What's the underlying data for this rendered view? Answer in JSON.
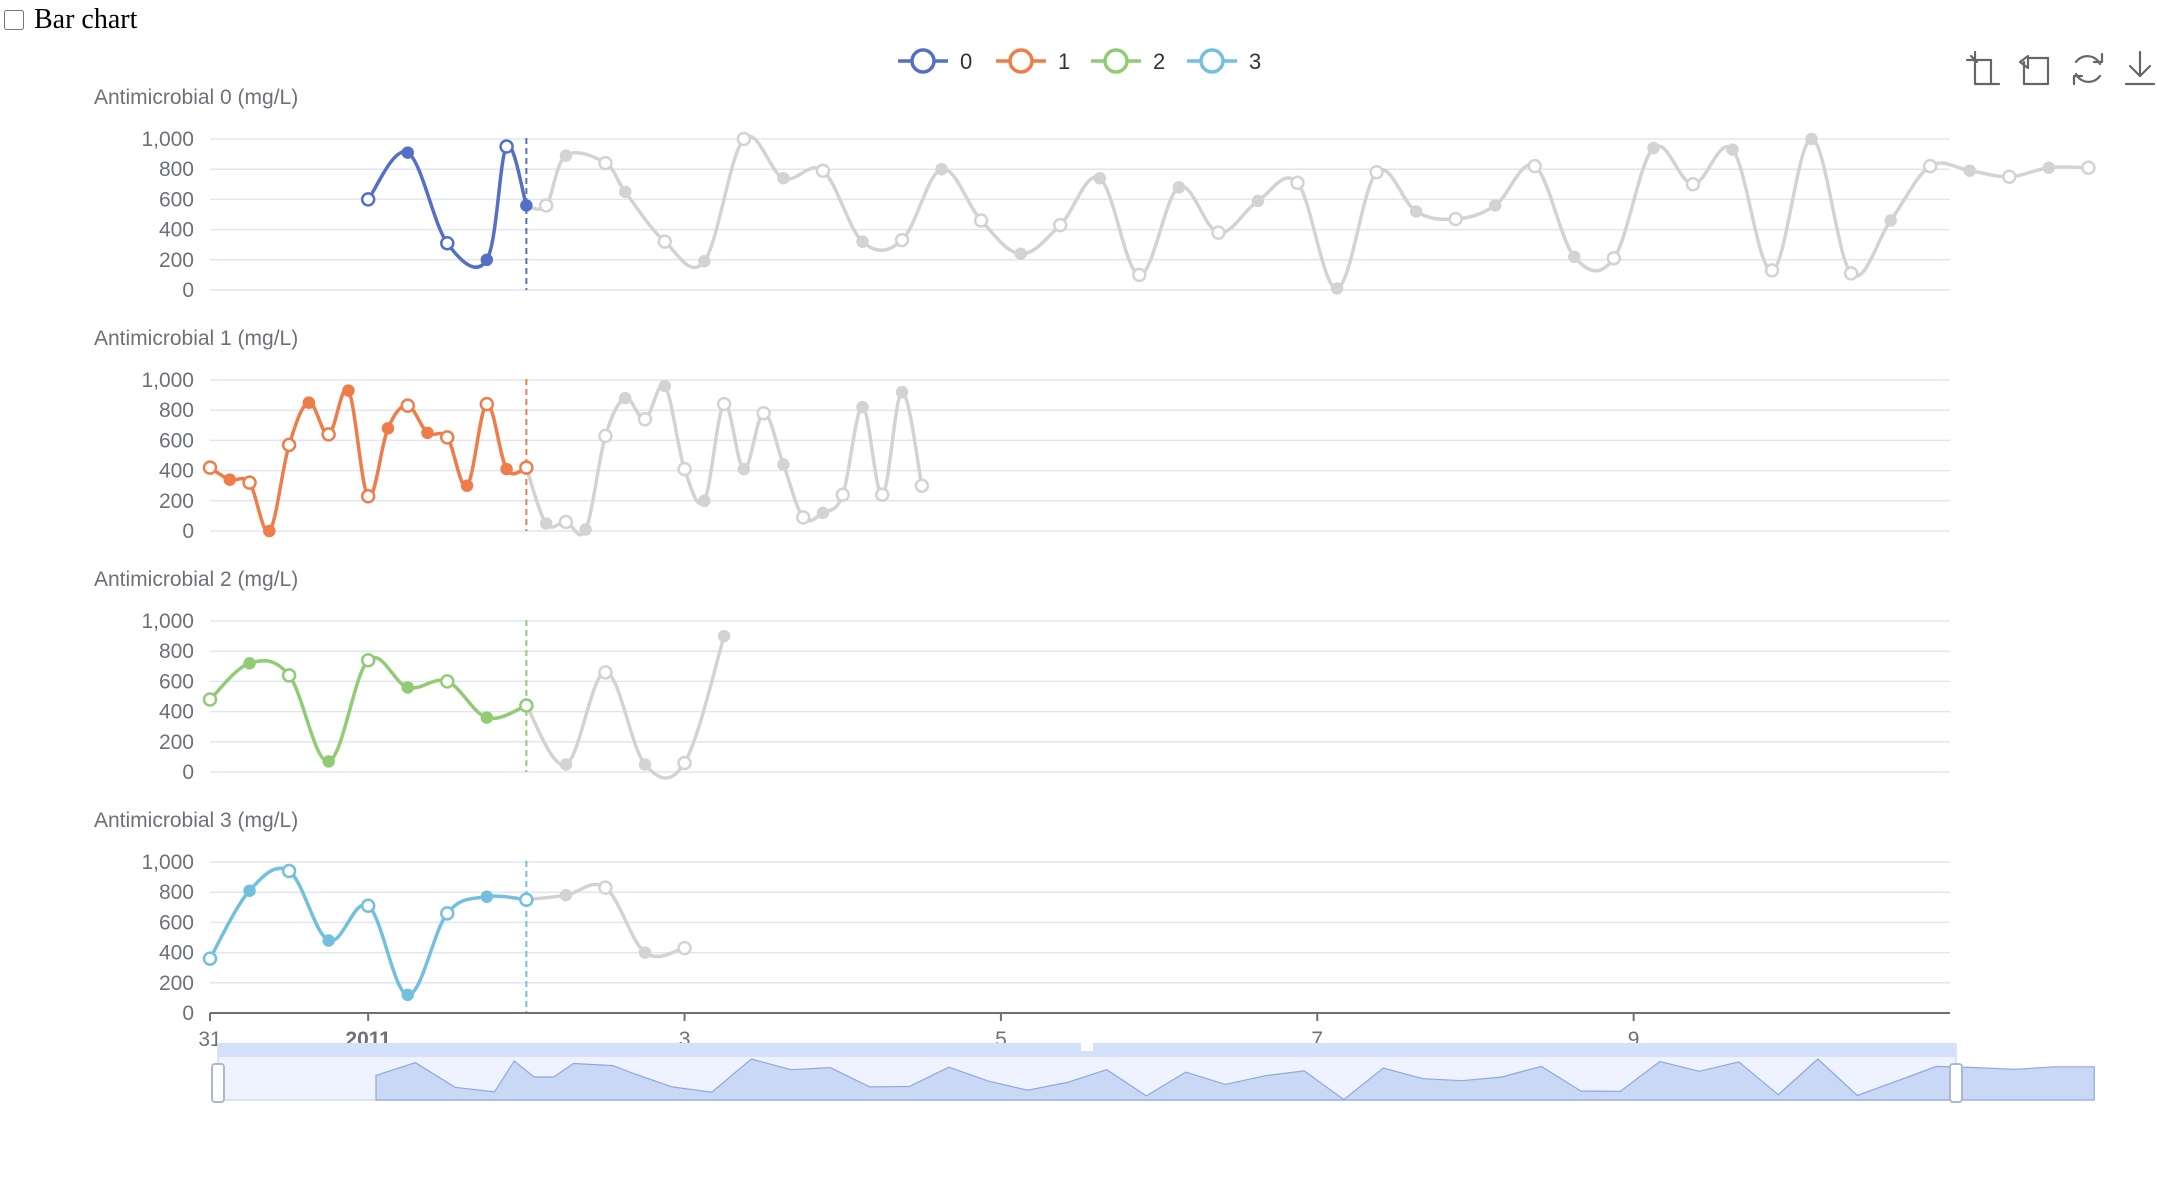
{
  "controls": {
    "bar_chart_label": "Bar chart",
    "bar_chart_checked": false
  },
  "toolbox": {
    "icons": [
      "zoom-select-icon",
      "zoom-reset-icon",
      "restore-icon",
      "download-icon"
    ]
  },
  "chart_data": {
    "type": "line",
    "title": "",
    "x_ticks": [
      "31",
      "2011",
      "3",
      "5",
      "7",
      "9"
    ],
    "legend": [
      "0",
      "1",
      "2",
      "3"
    ],
    "legend_placement": "top-center",
    "colors": [
      "#5470c6",
      "#ee7d4a",
      "#91cc75",
      "#73c0de"
    ],
    "future_color": "#d3d3d3",
    "ylim": [
      0,
      1000
    ],
    "y_ticks": [
      "0",
      "200",
      "400",
      "600",
      "800",
      "1,000"
    ],
    "grid": true,
    "current_marker_date": "2011-01-02",
    "x_range": [
      "2010-12-31",
      "2011-01-11"
    ],
    "series": [
      {
        "name": "0",
        "ylabel": "Antimicrobial 0 (mg/L)",
        "points": [
          [
            "2011-01-01T00:00",
            600
          ],
          [
            "2011-01-01T06:00",
            910
          ],
          [
            "2011-01-01T12:00",
            310
          ],
          [
            "2011-01-01T18:00",
            200
          ],
          [
            "2011-01-01T21:00",
            950
          ],
          [
            "2011-01-02T00:00",
            560
          ],
          [
            "2011-01-02T03:00",
            560
          ],
          [
            "2011-01-02T06:00",
            890
          ],
          [
            "2011-01-02T12:00",
            840
          ],
          [
            "2011-01-02T15:00",
            650
          ],
          [
            "2011-01-02T21:00",
            320
          ],
          [
            "2011-01-03T03:00",
            190
          ],
          [
            "2011-01-03T09:00",
            1000
          ],
          [
            "2011-01-03T15:00",
            740
          ],
          [
            "2011-01-03T21:00",
            790
          ],
          [
            "2011-01-04T03:00",
            320
          ],
          [
            "2011-01-04T09:00",
            330
          ],
          [
            "2011-01-04T15:00",
            800
          ],
          [
            "2011-01-04T21:00",
            460
          ],
          [
            "2011-01-05T03:00",
            240
          ],
          [
            "2011-01-05T09:00",
            430
          ],
          [
            "2011-01-05T15:00",
            740
          ],
          [
            "2011-01-05T21:00",
            100
          ],
          [
            "2011-01-06T03:00",
            680
          ],
          [
            "2011-01-06T09:00",
            380
          ],
          [
            "2011-01-06T15:00",
            590
          ],
          [
            "2011-01-06T21:00",
            710
          ],
          [
            "2011-01-07T03:00",
            10
          ],
          [
            "2011-01-07T09:00",
            780
          ],
          [
            "2011-01-07T15:00",
            520
          ],
          [
            "2011-01-07T21:00",
            470
          ],
          [
            "2011-01-08T03:00",
            560
          ],
          [
            "2011-01-08T09:00",
            820
          ],
          [
            "2011-01-08T15:00",
            220
          ],
          [
            "2011-01-08T21:00",
            210
          ],
          [
            "2011-01-09T03:00",
            940
          ],
          [
            "2011-01-09T09:00",
            700
          ],
          [
            "2011-01-09T15:00",
            930
          ],
          [
            "2011-01-09T21:00",
            130
          ],
          [
            "2011-01-10T03:00",
            1000
          ],
          [
            "2011-01-10T09:00",
            110
          ],
          [
            "2011-01-10T15:00",
            460
          ],
          [
            "2011-01-10T21:00",
            820
          ],
          [
            "2011-01-11T03:00",
            790
          ],
          [
            "2011-01-11T09:00",
            750
          ],
          [
            "2011-01-11T15:00",
            810
          ],
          [
            "2011-01-11T21:00",
            810
          ]
        ]
      },
      {
        "name": "1",
        "ylabel": "Antimicrobial 1 (mg/L)",
        "points": [
          [
            "2010-12-31T00:00",
            420
          ],
          [
            "2010-12-31T03:00",
            340
          ],
          [
            "2010-12-31T06:00",
            320
          ],
          [
            "2010-12-31T09:00",
            0
          ],
          [
            "2010-12-31T12:00",
            570
          ],
          [
            "2010-12-31T15:00",
            850
          ],
          [
            "2010-12-31T18:00",
            640
          ],
          [
            "2010-12-31T21:00",
            930
          ],
          [
            "2011-01-01T00:00",
            230
          ],
          [
            "2011-01-01T03:00",
            680
          ],
          [
            "2011-01-01T06:00",
            830
          ],
          [
            "2011-01-01T09:00",
            650
          ],
          [
            "2011-01-01T12:00",
            620
          ],
          [
            "2011-01-01T15:00",
            300
          ],
          [
            "2011-01-01T18:00",
            840
          ],
          [
            "2011-01-01T21:00",
            410
          ],
          [
            "2011-01-02T00:00",
            420
          ],
          [
            "2011-01-02T03:00",
            50
          ],
          [
            "2011-01-02T06:00",
            60
          ],
          [
            "2011-01-02T09:00",
            10
          ],
          [
            "2011-01-02T12:00",
            630
          ],
          [
            "2011-01-02T15:00",
            880
          ],
          [
            "2011-01-02T18:00",
            740
          ],
          [
            "2011-01-02T21:00",
            960
          ],
          [
            "2011-01-03T00:00",
            410
          ],
          [
            "2011-01-03T03:00",
            200
          ],
          [
            "2011-01-03T06:00",
            840
          ],
          [
            "2011-01-03T09:00",
            410
          ],
          [
            "2011-01-03T12:00",
            780
          ],
          [
            "2011-01-03T15:00",
            440
          ],
          [
            "2011-01-03T18:00",
            90
          ],
          [
            "2011-01-03T21:00",
            120
          ],
          [
            "2011-01-04T00:00",
            240
          ],
          [
            "2011-01-04T03:00",
            820
          ],
          [
            "2011-01-04T06:00",
            240
          ],
          [
            "2011-01-04T09:00",
            920
          ],
          [
            "2011-01-04T12:00",
            300
          ]
        ]
      },
      {
        "name": "2",
        "ylabel": "Antimicrobial 2 (mg/L)",
        "points": [
          [
            "2010-12-31T00:00",
            480
          ],
          [
            "2010-12-31T06:00",
            720
          ],
          [
            "2010-12-31T12:00",
            640
          ],
          [
            "2010-12-31T18:00",
            70
          ],
          [
            "2011-01-01T00:00",
            740
          ],
          [
            "2011-01-01T06:00",
            560
          ],
          [
            "2011-01-01T12:00",
            600
          ],
          [
            "2011-01-01T18:00",
            360
          ],
          [
            "2011-01-02T00:00",
            440
          ],
          [
            "2011-01-02T06:00",
            50
          ],
          [
            "2011-01-02T12:00",
            660
          ],
          [
            "2011-01-02T18:00",
            50
          ],
          [
            "2011-01-03T00:00",
            60
          ],
          [
            "2011-01-03T06:00",
            900
          ]
        ]
      },
      {
        "name": "3",
        "ylabel": "Antimicrobial 3 (mg/L)",
        "points": [
          [
            "2010-12-31T00:00",
            360
          ],
          [
            "2010-12-31T06:00",
            810
          ],
          [
            "2010-12-31T12:00",
            940
          ],
          [
            "2010-12-31T18:00",
            480
          ],
          [
            "2011-01-01T00:00",
            710
          ],
          [
            "2011-01-01T06:00",
            120
          ],
          [
            "2011-01-01T12:00",
            660
          ],
          [
            "2011-01-01T18:00",
            770
          ],
          [
            "2011-01-02T00:00",
            750
          ],
          [
            "2011-01-02T06:00",
            780
          ],
          [
            "2011-01-02T12:00",
            830
          ],
          [
            "2011-01-02T18:00",
            400
          ],
          [
            "2011-01-03T00:00",
            430
          ]
        ]
      }
    ]
  }
}
